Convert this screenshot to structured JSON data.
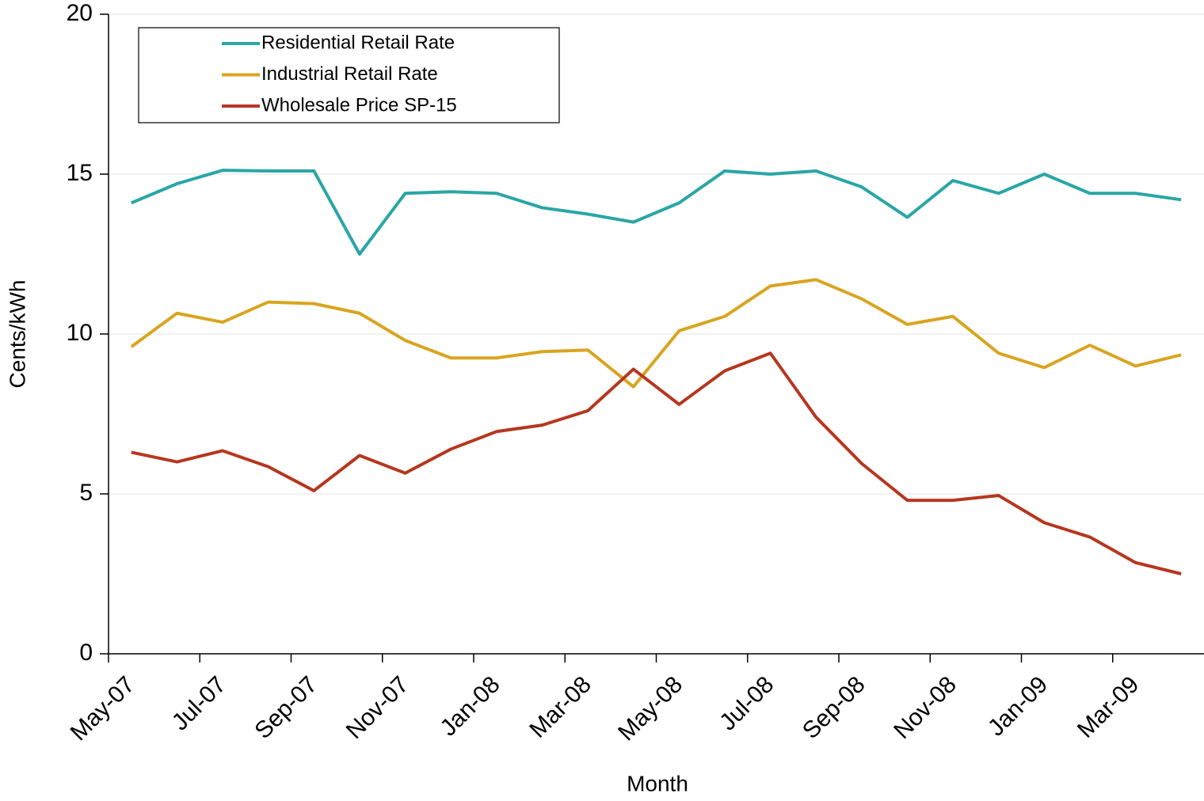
{
  "chart_data": {
    "type": "line",
    "x_label": "Month",
    "y_label": "Cents/kWh",
    "categories": [
      "May-07",
      null,
      "Jul-07",
      null,
      "Sep-07",
      null,
      "Nov-07",
      null,
      "Jan-08",
      null,
      "Mar-08",
      null,
      "May-08",
      null,
      "Jul-08",
      null,
      "Sep-08",
      null,
      "Nov-08",
      null,
      "Jan-09",
      null,
      "Mar-09",
      null
    ],
    "series": [
      {
        "name": "Residential Retail Rate",
        "color": "#2aa6a6",
        "values": [
          14.1,
          14.7,
          15.12,
          15.1,
          15.1,
          12.5,
          14.4,
          14.45,
          14.4,
          13.95,
          13.75,
          13.5,
          14.1,
          15.1,
          15.0,
          15.1,
          14.6,
          13.65,
          14.8,
          14.4,
          15.0,
          14.4,
          14.4,
          14.2
        ]
      },
      {
        "name": "Industrial Retail Rate",
        "color": "#d8a520",
        "values": [
          9.6,
          10.65,
          10.37,
          11.0,
          10.95,
          10.65,
          9.8,
          9.25,
          9.25,
          9.45,
          9.5,
          8.35,
          10.1,
          10.55,
          11.5,
          11.7,
          11.1,
          10.3,
          10.55,
          9.4,
          8.95,
          9.65,
          9.0,
          9.35
        ]
      },
      {
        "name": "Wholesale Price SP-15",
        "color": "#b5371f",
        "values": [
          6.3,
          6.0,
          6.35,
          5.85,
          5.1,
          6.2,
          5.65,
          6.4,
          6.95,
          7.15,
          7.6,
          8.9,
          7.8,
          8.85,
          9.4,
          7.4,
          5.95,
          4.8,
          4.8,
          4.95,
          4.1,
          3.65,
          2.85,
          2.5
        ]
      }
    ],
    "ylim": [
      0,
      20
    ],
    "yticks": [
      0,
      5,
      10,
      15,
      20
    ],
    "grid": true,
    "legend": "top-left"
  }
}
